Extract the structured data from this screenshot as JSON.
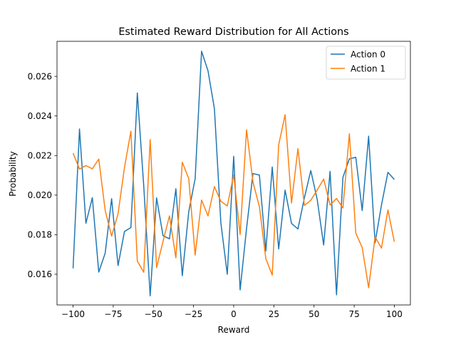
{
  "chart_data": {
    "type": "line",
    "title": "Estimated Reward Distribution for All Actions",
    "xlabel": "Reward",
    "ylabel": "Probability",
    "xlim": [
      -110,
      110
    ],
    "ylim": [
      0.01445,
      0.02777
    ],
    "xticks": [
      -100,
      -75,
      -50,
      -25,
      0,
      25,
      50,
      75,
      100
    ],
    "xtick_labels": [
      "−100",
      "−75",
      "−50",
      "−25",
      "0",
      "25",
      "50",
      "75",
      "100"
    ],
    "yticks": [
      0.016,
      0.018,
      0.02,
      0.022,
      0.024,
      0.026
    ],
    "ytick_labels": [
      "0.016",
      "0.018",
      "0.020",
      "0.022",
      "0.024",
      "0.026"
    ],
    "grid": false,
    "legend": "top-right",
    "x": [
      -100,
      -96,
      -92,
      -88,
      -84,
      -80,
      -76,
      -72,
      -68,
      -64,
      -60,
      -56,
      -52,
      -48,
      -44,
      -40,
      -36,
      -32,
      -28,
      -24,
      -20,
      -16,
      -12,
      -8,
      -4,
      0,
      4,
      8,
      12,
      16,
      20,
      24,
      28,
      32,
      36,
      40,
      44,
      48,
      52,
      56,
      60,
      64,
      68,
      72,
      76,
      80,
      84,
      88,
      92,
      96,
      100
    ],
    "series": [
      {
        "name": "Action 0",
        "color": "#1f77b4",
        "values": [
          0.0163,
          0.02334,
          0.01858,
          0.01987,
          0.01611,
          0.01707,
          0.01982,
          0.01644,
          0.01816,
          0.01836,
          0.02516,
          0.02046,
          0.01491,
          0.01986,
          0.01795,
          0.01779,
          0.02032,
          0.01593,
          0.01915,
          0.02083,
          0.02727,
          0.02628,
          0.02436,
          0.0186,
          0.016,
          0.02196,
          0.01521,
          0.01832,
          0.02109,
          0.02101,
          0.01718,
          0.02142,
          0.01728,
          0.02025,
          0.01857,
          0.01829,
          0.01986,
          0.02124,
          0.01977,
          0.01748,
          0.0212,
          0.01496,
          0.0209,
          0.02183,
          0.02191,
          0.01922,
          0.02298,
          0.01759,
          0.0195,
          0.02115,
          0.02079
        ]
      },
      {
        "name": "Action 1",
        "color": "#ff7f0e",
        "values": [
          0.02212,
          0.02132,
          0.02149,
          0.02133,
          0.02182,
          0.01922,
          0.01793,
          0.01905,
          0.02139,
          0.02323,
          0.01667,
          0.0161,
          0.0228,
          0.01634,
          0.01766,
          0.01895,
          0.01683,
          0.02166,
          0.02084,
          0.01697,
          0.01975,
          0.01895,
          0.02043,
          0.01969,
          0.01945,
          0.02102,
          0.01801,
          0.0233,
          0.02066,
          0.01941,
          0.01679,
          0.01596,
          0.02254,
          0.02406,
          0.0196,
          0.02235,
          0.01948,
          0.01974,
          0.02026,
          0.02081,
          0.0195,
          0.01983,
          0.01935,
          0.0231,
          0.01808,
          0.01735,
          0.01532,
          0.01789,
          0.01732,
          0.01925,
          0.01764
        ]
      }
    ]
  }
}
